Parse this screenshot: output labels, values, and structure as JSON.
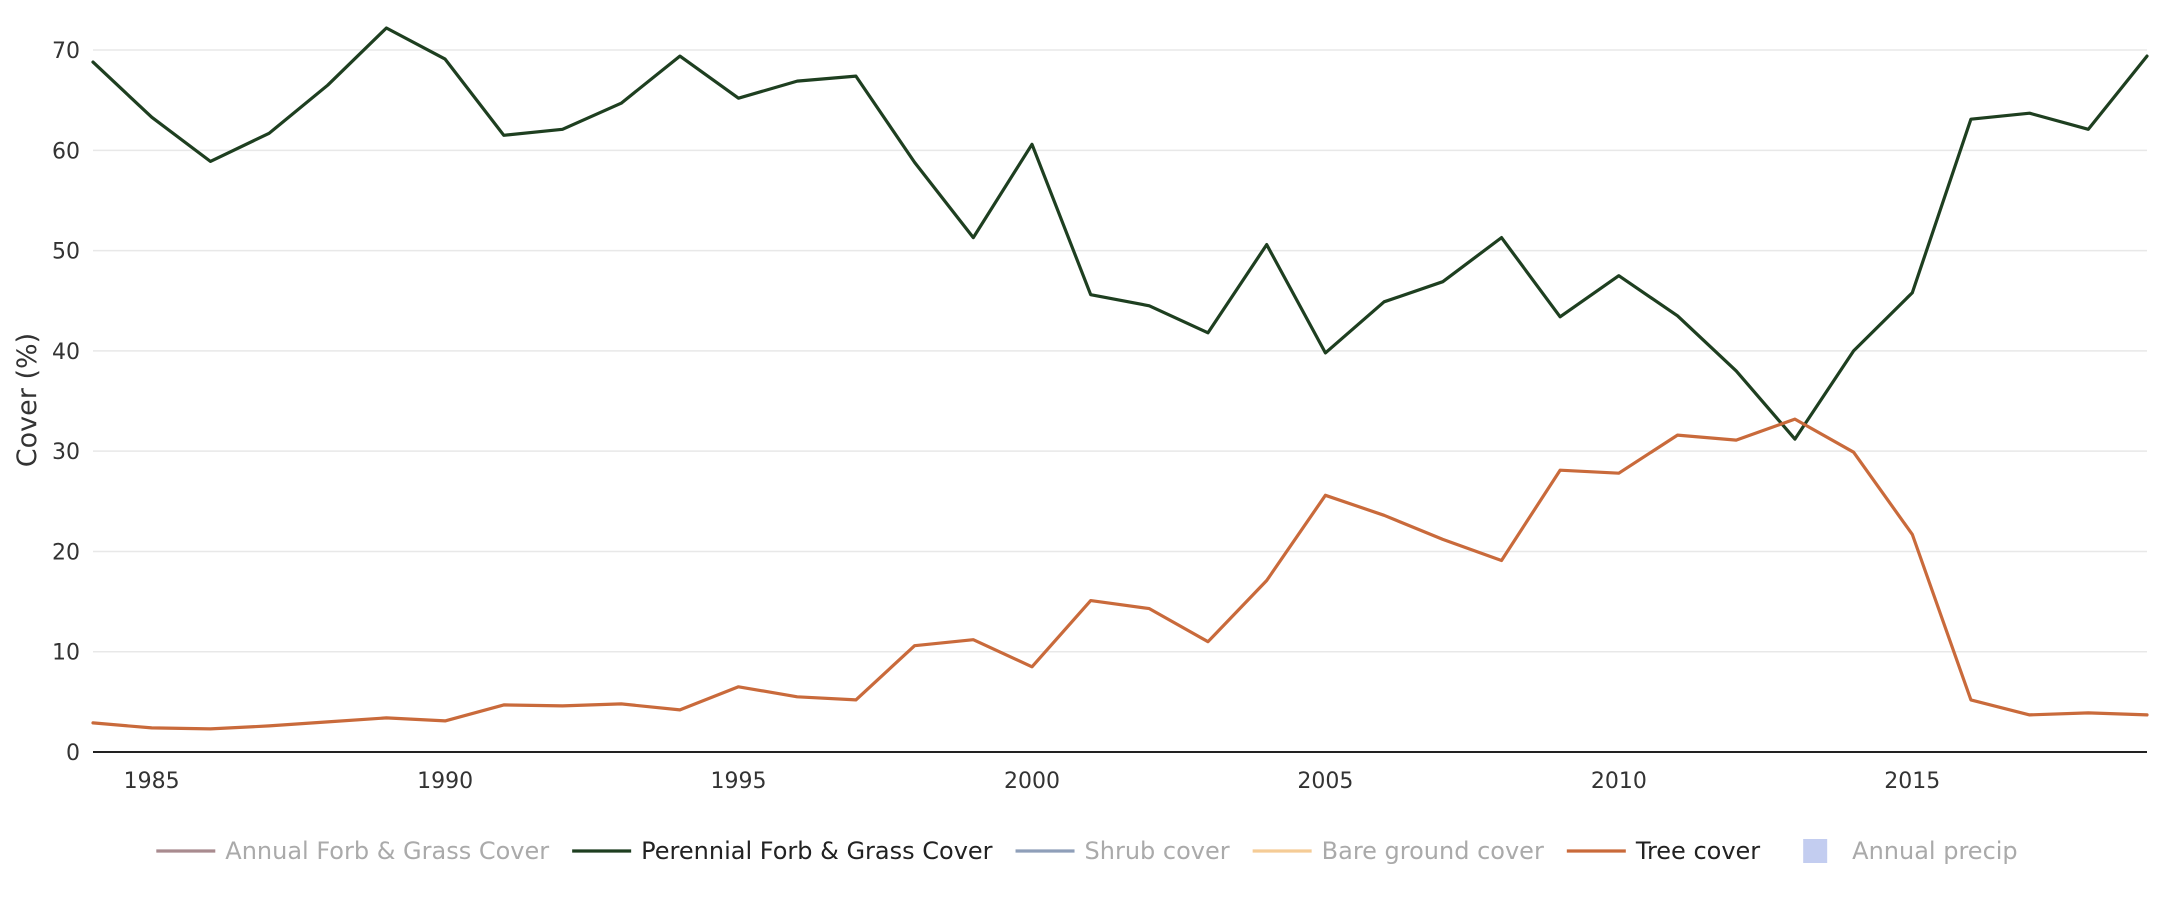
{
  "chart_data": {
    "type": "line",
    "ylabel": "Cover (%)",
    "xlabel": "",
    "xlim": [
      1984,
      2019
    ],
    "ylim": [
      0,
      72
    ],
    "x_ticks": [
      1985,
      1990,
      1995,
      2000,
      2005,
      2010,
      2015
    ],
    "y_ticks": [
      0,
      10,
      20,
      30,
      40,
      50,
      60,
      70
    ],
    "grid": "horizontal",
    "legend_position": "bottom",
    "x": [
      1984,
      1985,
      1986,
      1987,
      1988,
      1989,
      1990,
      1991,
      1992,
      1993,
      1994,
      1995,
      1996,
      1997,
      1998,
      1999,
      2000,
      2001,
      2002,
      2003,
      2004,
      2005,
      2006,
      2007,
      2008,
      2009,
      2010,
      2011,
      2012,
      2013,
      2014,
      2015,
      2016,
      2017,
      2018,
      2019
    ],
    "series": [
      {
        "name": "Annual Forb & Grass Cover",
        "color": "#a98b8f",
        "visible": false,
        "marker": "line"
      },
      {
        "name": "Perennial Forb & Grass Cover",
        "color": "#1e3f20",
        "visible": true,
        "marker": "line",
        "values": [
          68.8,
          63.3,
          58.9,
          61.7,
          66.5,
          72.2,
          69.1,
          61.5,
          62.1,
          64.7,
          69.4,
          65.2,
          66.9,
          67.4,
          58.8,
          51.3,
          60.6,
          45.6,
          44.5,
          41.8,
          50.6,
          39.8,
          44.9,
          46.9,
          51.3,
          43.4,
          47.5,
          43.5,
          38.0,
          31.2,
          40.0,
          45.8,
          63.1,
          63.7,
          62.1,
          69.4
        ]
      },
      {
        "name": "Shrub cover",
        "color": "#8f9fb9",
        "visible": false,
        "marker": "line"
      },
      {
        "name": "Bare ground cover",
        "color": "#f5cc96",
        "visible": false,
        "marker": "line"
      },
      {
        "name": "Tree cover",
        "color": "#c96a3b",
        "visible": true,
        "marker": "line",
        "values": [
          2.9,
          2.4,
          2.3,
          2.6,
          3.0,
          3.4,
          3.1,
          4.7,
          4.6,
          4.8,
          4.2,
          6.5,
          5.5,
          5.2,
          10.6,
          11.2,
          8.5,
          15.1,
          14.3,
          11.0,
          17.1,
          25.6,
          23.6,
          21.2,
          19.1,
          28.1,
          27.8,
          31.6,
          31.1,
          33.2,
          29.9,
          21.7,
          5.2,
          3.7,
          3.9,
          3.7
        ]
      },
      {
        "name": "Annual precip",
        "color": "#c3cdf0",
        "visible": false,
        "marker": "square"
      }
    ]
  },
  "styles": {
    "hidden_text_color": "#aaaaaa",
    "visible_text_color": "#222222",
    "grid_color": "#e8e8e8",
    "axis_color": "#222222"
  }
}
